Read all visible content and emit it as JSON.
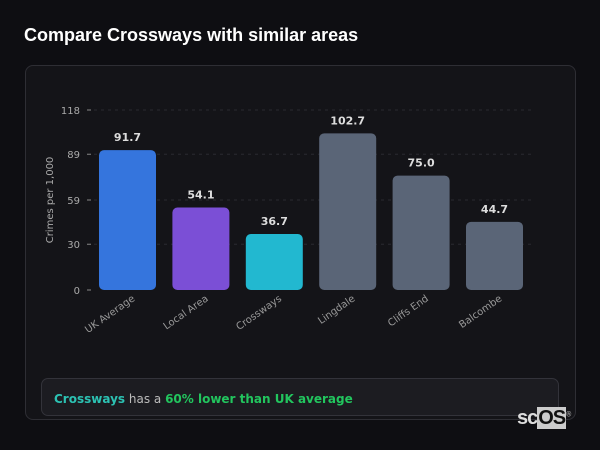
{
  "title": "Compare Crossways with similar areas",
  "chart_data": {
    "type": "bar",
    "ylabel": "Crimes per 1,000",
    "ylim": [
      0,
      118
    ],
    "yticks": [
      0,
      30,
      59,
      89,
      118
    ],
    "grid": true,
    "categories": [
      "UK Average",
      "Local Area",
      "Crossways",
      "Lingdale",
      "Cliffs End",
      "Balcombe"
    ],
    "values": [
      91.7,
      54.1,
      36.7,
      102.7,
      75.0,
      44.7
    ],
    "data_labels": [
      "91.7",
      "54.1",
      "36.7",
      "102.7",
      "75.0",
      "44.7"
    ],
    "colors": [
      "#3575dd",
      "#7b4fd6",
      "#22b8d0",
      "#5a6577",
      "#5a6577",
      "#5a6577"
    ]
  },
  "summary": {
    "area": "Crossways",
    "middle": " has a ",
    "highlight": "60% lower than UK average"
  },
  "logo": {
    "text1": "sc",
    "text2": "OS",
    "mark": "®"
  }
}
